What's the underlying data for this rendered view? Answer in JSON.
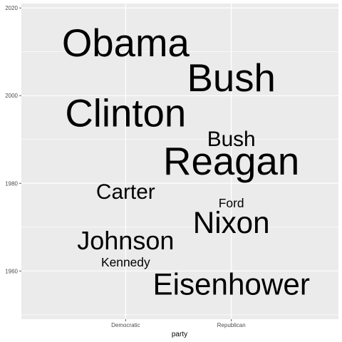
{
  "chart_data": {
    "type": "scatter",
    "title": "",
    "xlabel": "party",
    "ylabel": "",
    "categories": [
      "Democratic",
      "Republican"
    ],
    "ylim": [
      1949,
      2021
    ],
    "yticks": [
      1960,
      1980,
      2000,
      2020
    ],
    "grid": true,
    "panel_background": "#ebebeb",
    "grid_color": "#ffffff",
    "points": [
      {
        "label": "Obama",
        "x": "Democratic",
        "y": 2012,
        "size": 8
      },
      {
        "label": "Clinton",
        "x": "Democratic",
        "y": 1996,
        "size": 8
      },
      {
        "label": "Carter",
        "x": "Democratic",
        "y": 1978,
        "size": 4
      },
      {
        "label": "Johnson",
        "x": "Democratic",
        "y": 1967,
        "size": 5
      },
      {
        "label": "Kennedy",
        "x": "Democratic",
        "y": 1962,
        "size": 2
      },
      {
        "label": "Bush",
        "x": "Republican",
        "y": 2004,
        "size": 8
      },
      {
        "label": "Bush",
        "x": "Republican",
        "y": 1990,
        "size": 4
      },
      {
        "label": "Reagan",
        "x": "Republican",
        "y": 1985,
        "size": 8
      },
      {
        "label": "Ford",
        "x": "Republican",
        "y": 1975.5,
        "size": 2
      },
      {
        "label": "Nixon",
        "x": "Republican",
        "y": 1971,
        "size": 6
      },
      {
        "label": "Eisenhower",
        "x": "Republican",
        "y": 1957,
        "size": 6
      }
    ]
  }
}
